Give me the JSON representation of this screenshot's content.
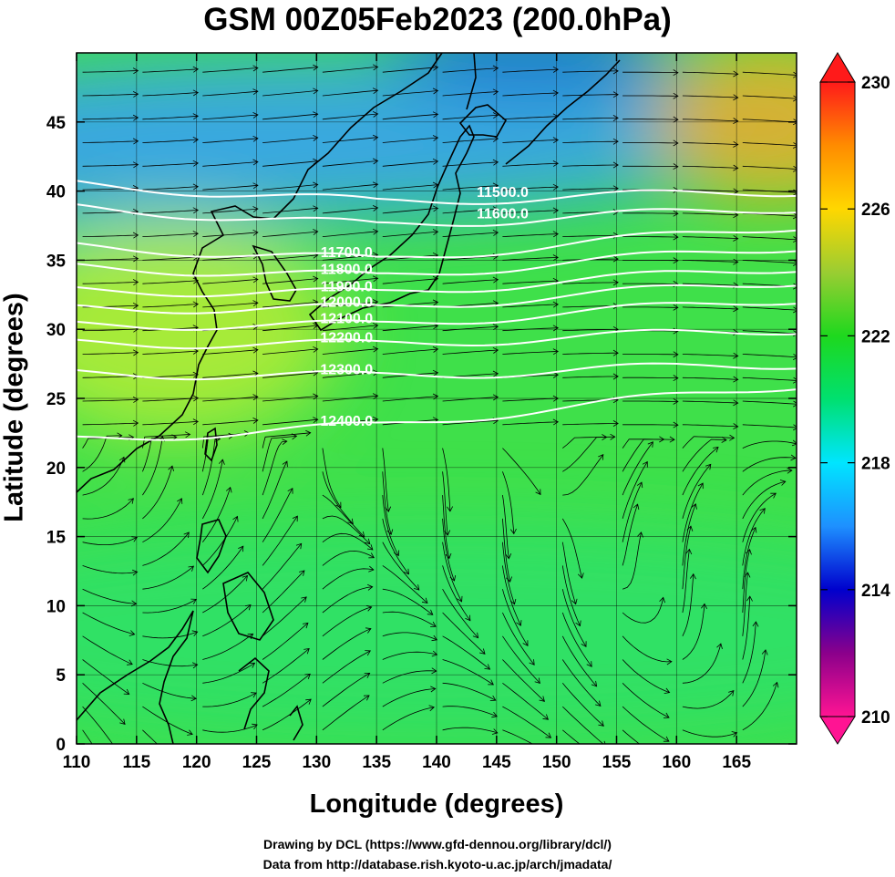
{
  "chart_data": {
    "type": "heatmap",
    "title": "GSM 00Z05Feb2023 (200.0hPa)",
    "xlabel": "Longitude (degrees)",
    "ylabel": "Latitude  (degrees)",
    "xlim": [
      110,
      170
    ],
    "ylim": [
      0,
      50
    ],
    "x_ticks": [
      "110",
      "115",
      "120",
      "125",
      "130",
      "135",
      "140",
      "145",
      "150",
      "155",
      "160",
      "165"
    ],
    "y_ticks": [
      "0",
      "5",
      "10",
      "15",
      "20",
      "25",
      "30",
      "35",
      "40",
      "45"
    ],
    "colorbar": {
      "range": [
        210,
        230
      ],
      "tick_labels": [
        "230",
        "226",
        "222",
        "218",
        "214",
        "210"
      ],
      "colors": [
        "#ff1493",
        "#8b008b",
        "#0000cd",
        "#1e90ff",
        "#00e5ff",
        "#00e070",
        "#1ed81e",
        "#9acd32",
        "#ffd700",
        "#ff8c00",
        "#ff1a1a"
      ]
    },
    "contours": [
      {
        "label": "11500.0",
        "value": 11500
      },
      {
        "label": "11600.0",
        "value": 11600
      },
      {
        "label": "11700.0",
        "value": 11700
      },
      {
        "label": "11800.0",
        "value": 11800
      },
      {
        "label": "11900.0",
        "value": 11900
      },
      {
        "label": "12000.0",
        "value": 12000
      },
      {
        "label": "12100.0",
        "value": 12100
      },
      {
        "label": "12200.0",
        "value": 12200
      },
      {
        "label": "12300.0",
        "value": 12300
      },
      {
        "label": "12400.0",
        "value": 12400
      }
    ],
    "grid": true,
    "field_colors": {
      "background": "#3fe04a",
      "north_cold": "#3aa6e6",
      "cold_core": "#1468e0",
      "tropics": "#2fe06a",
      "northeast_warm": "#f0b020",
      "southwest_yellow": "#b8ec36"
    }
  },
  "credits": {
    "line1": "Drawing by DCL (https://www.gfd-dennou.org/library/dcl/)",
    "line2": "Data from http://database.rish.kyoto-u.ac.jp/arch/jmadata/"
  }
}
